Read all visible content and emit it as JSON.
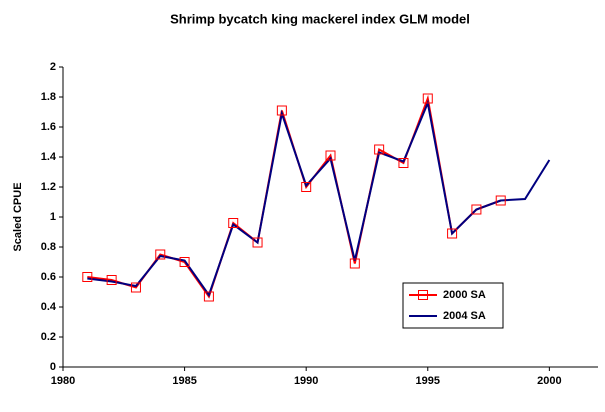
{
  "chart_data": {
    "type": "line",
    "title": "Shrimp bycatch king mackerel index GLM model",
    "y_label": "Scaled CPUE",
    "x": [
      1981,
      1982,
      1983,
      1984,
      1985,
      1986,
      1987,
      1988,
      1989,
      1990,
      1991,
      1992,
      1993,
      1994,
      1995,
      1996,
      1997,
      1998,
      1999,
      2000
    ],
    "series": [
      {
        "name": "2000 SA",
        "color": "#ff0000",
        "marker": "square",
        "values": [
          0.6,
          0.58,
          0.53,
          0.75,
          0.7,
          0.47,
          0.96,
          0.83,
          1.71,
          1.2,
          1.41,
          0.69,
          1.45,
          1.36,
          1.79,
          0.89,
          1.05,
          1.11,
          null,
          null
        ]
      },
      {
        "name": "2004 SA",
        "color": "#000080",
        "marker": "none",
        "values": [
          0.59,
          0.57,
          0.54,
          0.74,
          0.71,
          0.48,
          0.95,
          0.83,
          1.69,
          1.21,
          1.39,
          0.71,
          1.43,
          1.37,
          1.76,
          0.89,
          1.05,
          1.11,
          1.12,
          1.38
        ]
      }
    ],
    "xlim": [
      1980,
      2002
    ],
    "xticks": [
      1980,
      1985,
      1990,
      1995,
      2000
    ],
    "ylim": [
      0,
      2
    ],
    "yticks": [
      0,
      0.2,
      0.4,
      0.6,
      0.8,
      1,
      1.2,
      1.4,
      1.6,
      1.8,
      2
    ],
    "grid": false,
    "legend": "lower right"
  }
}
